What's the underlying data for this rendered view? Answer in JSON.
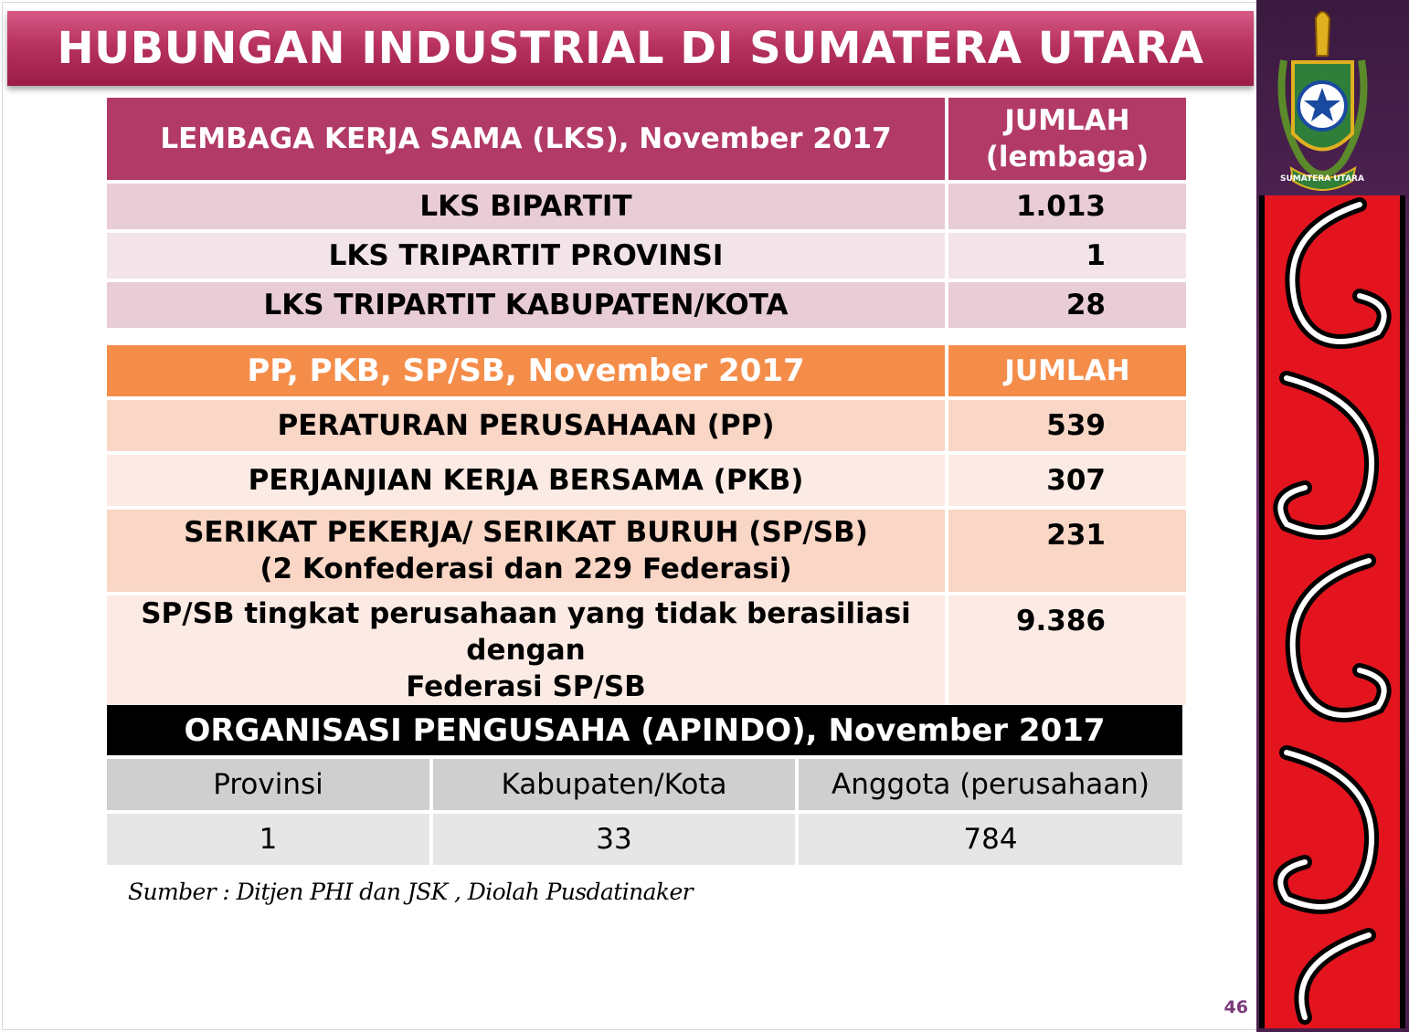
{
  "title": "HUBUNGAN INDUSTRIAL DI SUMATERA UTARA",
  "lks": {
    "header_label": "LEMBAGA KERJA SAMA (LKS), November 2017",
    "header_count_line1": "JUMLAH",
    "header_count_line2": "(lembaga)",
    "rows": [
      {
        "label": "LKS BIPARTIT",
        "value": "1.013"
      },
      {
        "label": "LKS TRIPARTIT PROVINSI",
        "value": "1"
      },
      {
        "label": "LKS TRIPARTIT KABUPATEN/KOTA",
        "value": "28"
      }
    ]
  },
  "pp": {
    "header_label": "PP, PKB, SP/SB, November 2017",
    "header_count": "JUMLAH",
    "rows": [
      {
        "label": "PERATURAN PERUSAHAAN (PP)",
        "value": "539"
      },
      {
        "label": "PERJANJIAN KERJA BERSAMA (PKB)",
        "value": "307"
      },
      {
        "label": "SERIKAT PEKERJA/ SERIKAT BURUH (SP/SB)",
        "label_line2": "(2 Konfederasi dan 229 Federasi)",
        "value": "231"
      },
      {
        "label": "SP/SB tingkat perusahaan yang tidak berasiliasi dengan",
        "label_line2": "Federasi SP/SB",
        "value": "9.386"
      }
    ]
  },
  "apindo": {
    "header_label": "ORGANISASI PENGUSAHA (APINDO), November 2017",
    "columns": [
      "Provinsi",
      "Kabupaten/Kota",
      "Anggota (perusahaan)"
    ],
    "values": [
      "1",
      "33",
      "784"
    ]
  },
  "emblem_text": "SUMATERA UTARA",
  "source": "Sumber : Ditjen PHI dan JSK , Diolah Pusdatinaker",
  "page_number": "46",
  "colors": {
    "title_bar": "#b8325f",
    "lks_header": "#b23a67",
    "pp_header": "#f58d4a",
    "apindo_header": "#000000",
    "side_panel": "#5a2660",
    "ornament_red": "#e3141e"
  }
}
